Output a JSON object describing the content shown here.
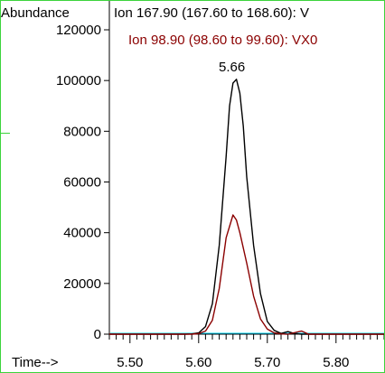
{
  "chart_data": {
    "type": "line",
    "y_axis_title": "Abundance",
    "x_axis_title": "Time-->",
    "ylim": [
      0,
      120000
    ],
    "xlim": [
      5.47,
      5.87
    ],
    "y_ticks": [
      0,
      20000,
      40000,
      60000,
      80000,
      100000,
      120000
    ],
    "y_tick_labels": [
      "0",
      "20000",
      "40000",
      "60000",
      "80000",
      "100000",
      "120000"
    ],
    "x_ticks": [
      5.5,
      5.6,
      5.7,
      5.8
    ],
    "x_tick_labels": [
      "5.50",
      "5.60",
      "5.70",
      "5.80"
    ],
    "peak_annotation": {
      "text": "5.66",
      "x": 5.655,
      "y": 100500
    },
    "baseline_color": "#00d8ff",
    "series": [
      {
        "name": "Ion 167.90 (167.60 to 168.60): V",
        "color": "#000000",
        "points": [
          [
            5.47,
            0
          ],
          [
            5.58,
            0
          ],
          [
            5.59,
            100
          ],
          [
            5.6,
            500
          ],
          [
            5.61,
            3000
          ],
          [
            5.62,
            12000
          ],
          [
            5.63,
            35000
          ],
          [
            5.64,
            70000
          ],
          [
            5.645,
            90000
          ],
          [
            5.65,
            99000
          ],
          [
            5.655,
            100500
          ],
          [
            5.66,
            95000
          ],
          [
            5.665,
            82000
          ],
          [
            5.67,
            62000
          ],
          [
            5.68,
            35000
          ],
          [
            5.69,
            16000
          ],
          [
            5.7,
            5000
          ],
          [
            5.71,
            1500
          ],
          [
            5.72,
            300
          ],
          [
            5.73,
            1000
          ],
          [
            5.74,
            200
          ],
          [
            5.75,
            0
          ],
          [
            5.87,
            0
          ]
        ]
      },
      {
        "name": "Ion  98.90 (98.60 to 99.60): VX0",
        "color": "#8b0000",
        "points": [
          [
            5.47,
            0
          ],
          [
            5.59,
            0
          ],
          [
            5.6,
            200
          ],
          [
            5.61,
            1200
          ],
          [
            5.62,
            5500
          ],
          [
            5.63,
            18000
          ],
          [
            5.64,
            38000
          ],
          [
            5.65,
            47000
          ],
          [
            5.655,
            45000
          ],
          [
            5.66,
            40000
          ],
          [
            5.67,
            28000
          ],
          [
            5.68,
            15000
          ],
          [
            5.69,
            6000
          ],
          [
            5.7,
            2000
          ],
          [
            5.71,
            500
          ],
          [
            5.72,
            100
          ],
          [
            5.73,
            0
          ],
          [
            5.75,
            1200
          ],
          [
            5.76,
            0
          ],
          [
            5.87,
            0
          ]
        ]
      }
    ]
  }
}
